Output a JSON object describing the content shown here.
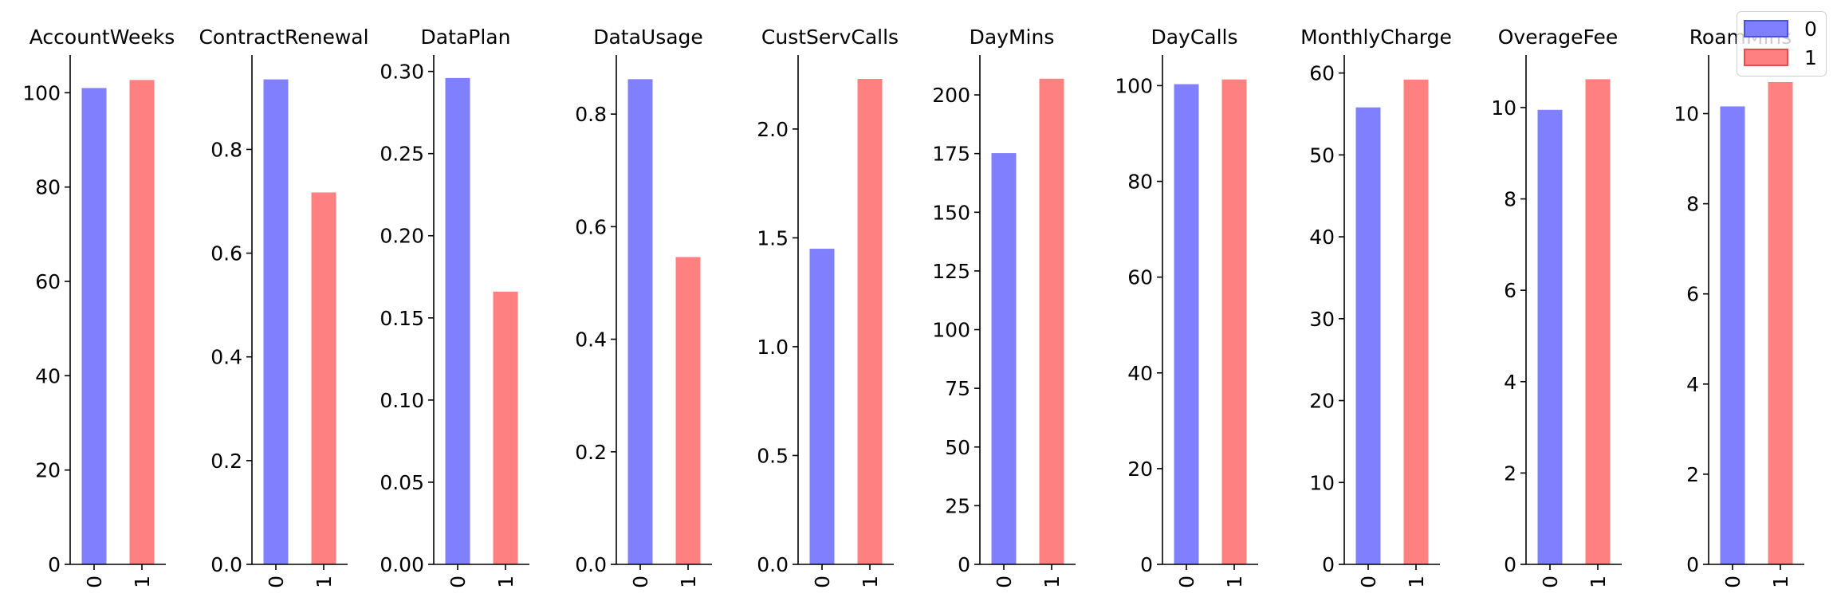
{
  "colors": {
    "class_0": "#8080ff",
    "class_1": "#ff8080",
    "class_0_edge": "#5050e0",
    "class_1_edge": "#e05050"
  },
  "legend": {
    "items": [
      {
        "label": "0"
      },
      {
        "label": "1"
      }
    ],
    "placement": "top-right"
  },
  "chart_data": [
    {
      "type": "bar",
      "title": "AccountWeeks",
      "categories": [
        "0",
        "1"
      ],
      "values": [
        101.0,
        102.7
      ],
      "yticks": [
        0,
        20,
        40,
        60,
        80,
        100
      ],
      "ylim": [
        0,
        108
      ]
    },
    {
      "type": "bar",
      "title": "ContractRenewal",
      "categories": [
        "0",
        "1"
      ],
      "values": [
        0.935,
        0.717
      ],
      "yticks": [
        0.0,
        0.2,
        0.4,
        0.6,
        0.8
      ],
      "ylim": [
        0,
        0.982
      ]
    },
    {
      "type": "bar",
      "title": "DataPlan",
      "categories": [
        "0",
        "1"
      ],
      "values": [
        0.296,
        0.166
      ],
      "yticks": [
        0.0,
        0.05,
        0.1,
        0.15,
        0.2,
        0.25,
        0.3
      ],
      "ylim": [
        0,
        0.31
      ]
    },
    {
      "type": "bar",
      "title": "DataUsage",
      "categories": [
        "0",
        "1"
      ],
      "values": [
        0.862,
        0.546
      ],
      "yticks": [
        0.0,
        0.2,
        0.4,
        0.6,
        0.8
      ],
      "ylim": [
        0,
        0.905
      ]
    },
    {
      "type": "bar",
      "title": "CustServCalls",
      "categories": [
        "0",
        "1"
      ],
      "values": [
        1.45,
        2.23
      ],
      "yticks": [
        0.0,
        0.5,
        1.0,
        1.5,
        2.0
      ],
      "ylim": [
        0,
        2.34
      ]
    },
    {
      "type": "bar",
      "title": "DayMins",
      "categories": [
        "0",
        "1"
      ],
      "values": [
        175.2,
        206.9
      ],
      "yticks": [
        0,
        25,
        50,
        75,
        100,
        125,
        150,
        175,
        200
      ],
      "ylim": [
        0,
        217
      ]
    },
    {
      "type": "bar",
      "title": "DayCalls",
      "categories": [
        "0",
        "1"
      ],
      "values": [
        100.3,
        101.3
      ],
      "yticks": [
        0,
        20,
        40,
        60,
        80,
        100
      ],
      "ylim": [
        0,
        106.4
      ]
    },
    {
      "type": "bar",
      "title": "MonthlyCharge",
      "categories": [
        "0",
        "1"
      ],
      "values": [
        55.8,
        59.2
      ],
      "yticks": [
        0,
        10,
        20,
        30,
        40,
        50,
        60
      ],
      "ylim": [
        0,
        62.2
      ]
    },
    {
      "type": "bar",
      "title": "OverageFee",
      "categories": [
        "0",
        "1"
      ],
      "values": [
        9.95,
        10.62
      ],
      "yticks": [
        0,
        2,
        4,
        6,
        8,
        10
      ],
      "ylim": [
        0,
        11.15
      ]
    },
    {
      "type": "bar",
      "title": "RoamMins",
      "categories": [
        "0",
        "1"
      ],
      "values": [
        10.16,
        10.7
      ],
      "yticks": [
        0,
        2,
        4,
        6,
        8,
        10
      ],
      "ylim": [
        0,
        11.3
      ]
    }
  ]
}
